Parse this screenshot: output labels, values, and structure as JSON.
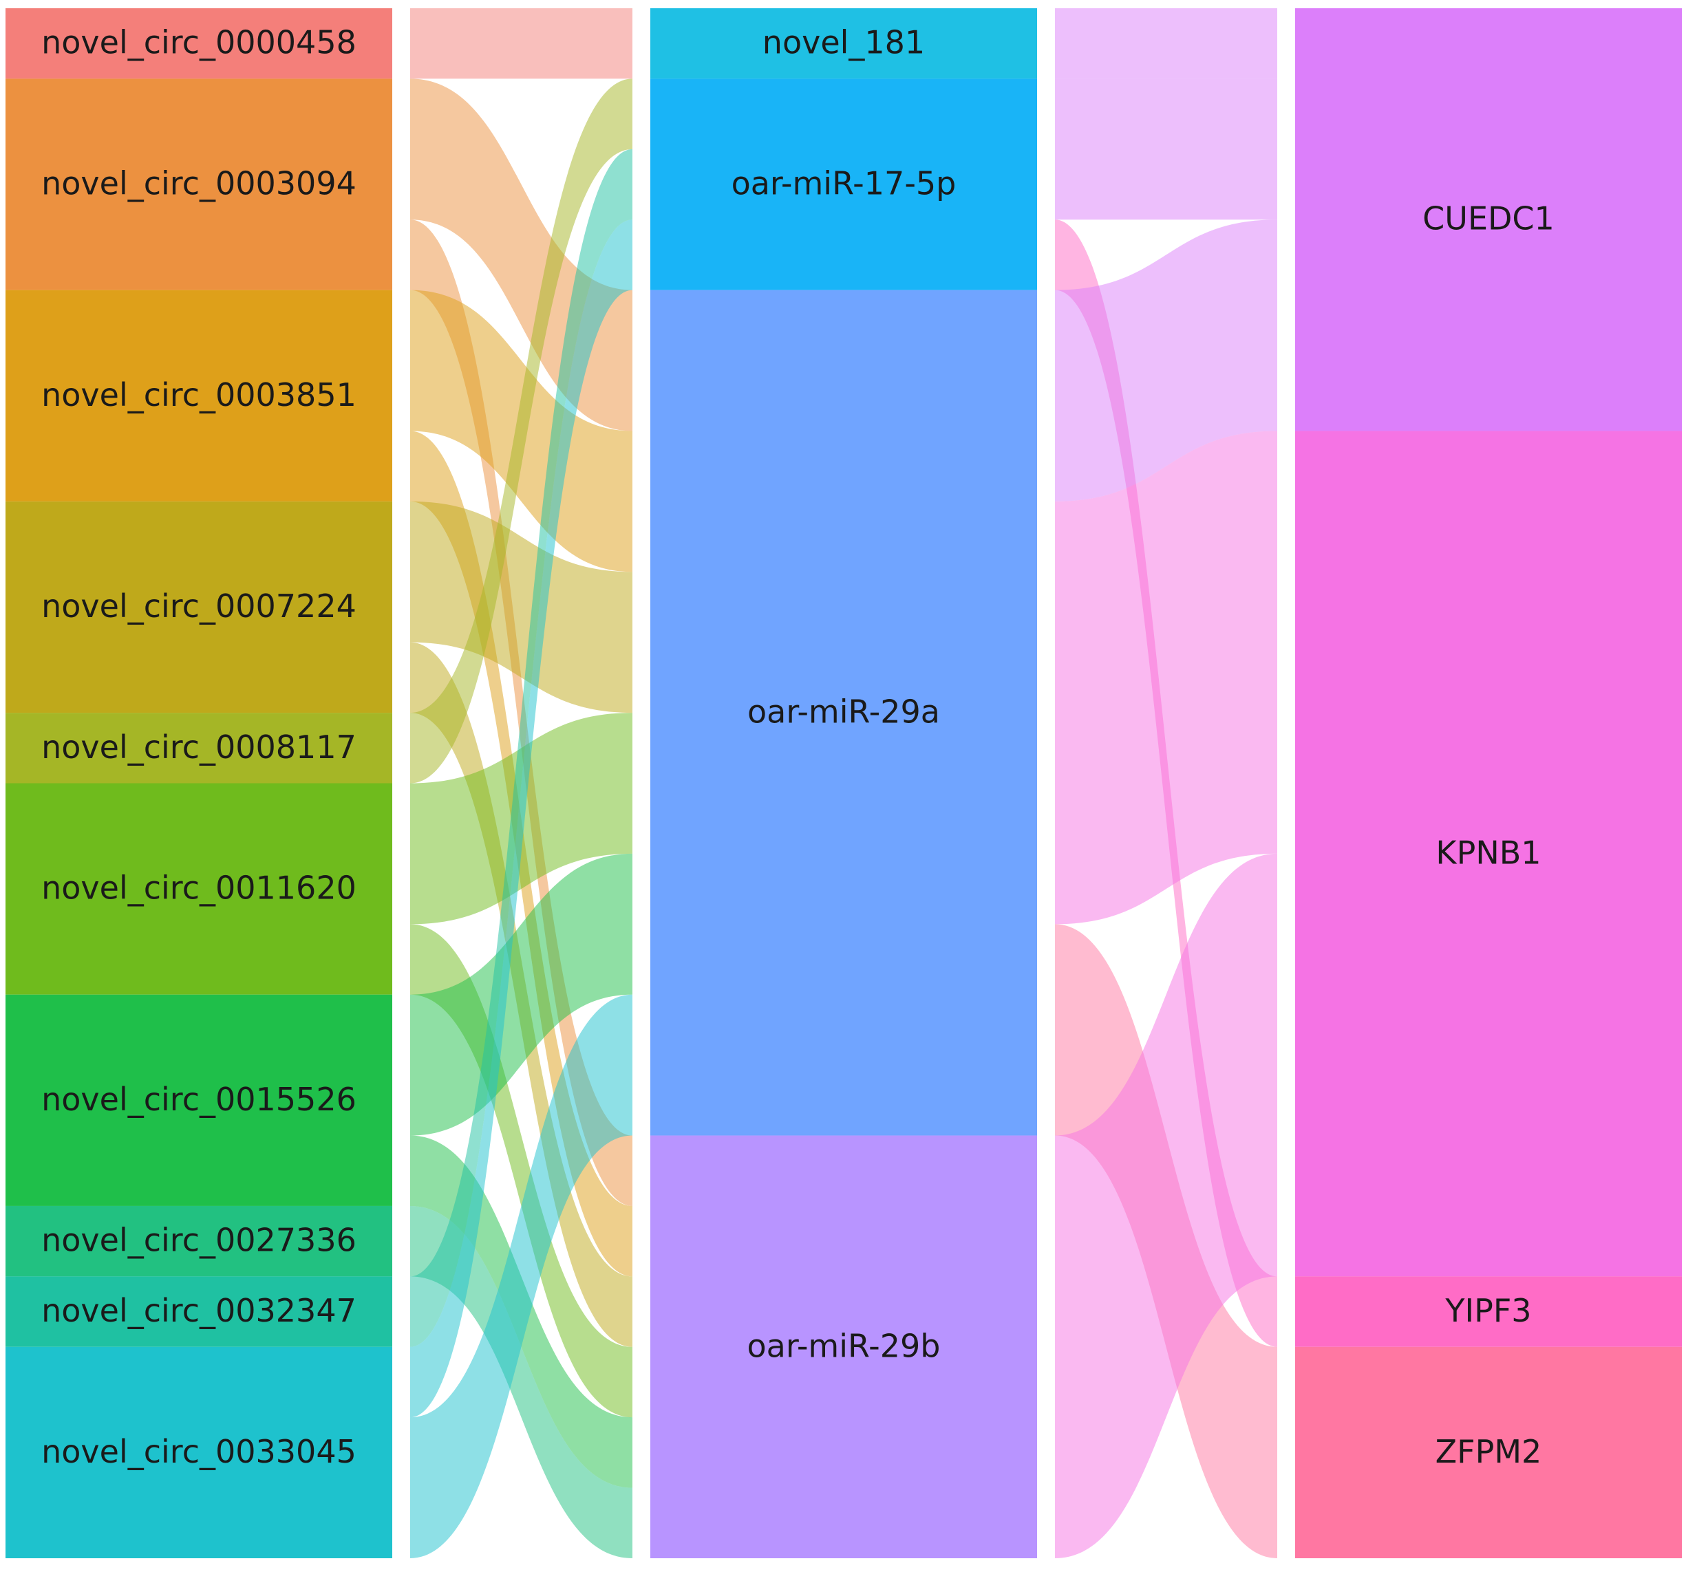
{
  "chart_data": {
    "type": "sankey",
    "title": "",
    "columns": [
      {
        "name": "",
        "nodes": [
          {
            "id": "c0458",
            "label": "novel_circ_0000458",
            "value": 1,
            "color": "#f47f7a"
          },
          {
            "id": "c3094",
            "label": "novel_circ_0003094",
            "value": 3,
            "color": "#ec9140"
          },
          {
            "id": "c3851",
            "label": "novel_circ_0003851",
            "value": 3,
            "color": "#dea01a"
          },
          {
            "id": "c7224",
            "label": "novel_circ_0007224",
            "value": 3,
            "color": "#bfa91b"
          },
          {
            "id": "c8117",
            "label": "novel_circ_0008117",
            "value": 1,
            "color": "#a5b626"
          },
          {
            "id": "c11620",
            "label": "novel_circ_0011620",
            "value": 3,
            "color": "#6fbb1d"
          },
          {
            "id": "c15526",
            "label": "novel_circ_0015526",
            "value": 3,
            "color": "#1fbf4a"
          },
          {
            "id": "c27336",
            "label": "novel_circ_0027336",
            "value": 1,
            "color": "#22c181"
          },
          {
            "id": "c32347",
            "label": "novel_circ_0032347",
            "value": 1,
            "color": "#1fc1a2"
          },
          {
            "id": "c33045",
            "label": "novel_circ_0033045",
            "value": 3,
            "color": "#1ec2cd"
          }
        ]
      },
      {
        "name": "",
        "nodes": [
          {
            "id": "m181",
            "label": "novel_181",
            "value": 1,
            "color": "#1fc0e4"
          },
          {
            "id": "m17",
            "label": "oar-miR-17-5p",
            "value": 3,
            "color": "#19b4f7"
          },
          {
            "id": "m29a",
            "label": "oar-miR-29a",
            "value": 12,
            "color": "#70a4ff"
          },
          {
            "id": "m29b",
            "label": "oar-miR-29b",
            "value": 6,
            "color": "#b894ff"
          }
        ]
      },
      {
        "name": "",
        "nodes": [
          {
            "id": "CUEDC1",
            "label": "CUEDC1",
            "value": 6,
            "color": "#dc7ffa"
          },
          {
            "id": "KPNB1",
            "label": "KPNB1",
            "value": 12,
            "color": "#f573e4"
          },
          {
            "id": "YIPF3",
            "label": "YIPF3",
            "value": 1,
            "color": "#ff6cc6"
          },
          {
            "id": "ZFPM2",
            "label": "ZFPM2",
            "value": 3,
            "color": "#ff77a2"
          }
        ]
      }
    ],
    "links": [
      {
        "source": "c0458",
        "target": "m181",
        "value": 1
      },
      {
        "source": "c3094",
        "target": "m29a",
        "value": 2
      },
      {
        "source": "c3094",
        "target": "m29b",
        "value": 1
      },
      {
        "source": "c3851",
        "target": "m29a",
        "value": 2
      },
      {
        "source": "c3851",
        "target": "m29b",
        "value": 1
      },
      {
        "source": "c7224",
        "target": "m29a",
        "value": 2
      },
      {
        "source": "c7224",
        "target": "m29b",
        "value": 1
      },
      {
        "source": "c8117",
        "target": "m17",
        "value": 1
      },
      {
        "source": "c11620",
        "target": "m29a",
        "value": 2
      },
      {
        "source": "c11620",
        "target": "m29b",
        "value": 1
      },
      {
        "source": "c15526",
        "target": "m29a",
        "value": 2
      },
      {
        "source": "c15526",
        "target": "m29b",
        "value": 1
      },
      {
        "source": "c27336",
        "target": "m29b",
        "value": 1
      },
      {
        "source": "c32347",
        "target": "m17",
        "value": 1
      },
      {
        "source": "c33045",
        "target": "m17",
        "value": 1
      },
      {
        "source": "c33045",
        "target": "m29a",
        "value": 2
      },
      {
        "source": "m181",
        "target": "CUEDC1",
        "value": 1
      },
      {
        "source": "m17",
        "target": "CUEDC1",
        "value": 2
      },
      {
        "source": "m17",
        "target": "YIPF3",
        "value": 1
      },
      {
        "source": "m29a",
        "target": "CUEDC1",
        "value": 3
      },
      {
        "source": "m29a",
        "target": "KPNB1",
        "value": 6
      },
      {
        "source": "m29a",
        "target": "ZFPM2",
        "value": 3
      },
      {
        "source": "m29b",
        "target": "KPNB1",
        "value": 6
      }
    ]
  }
}
